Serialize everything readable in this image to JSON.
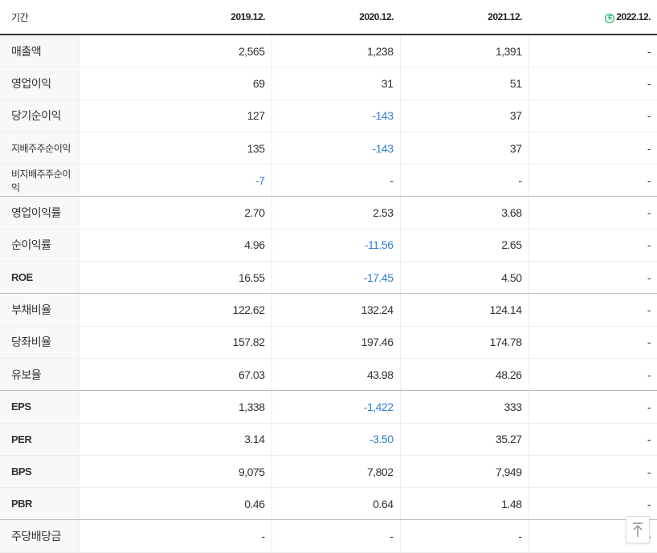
{
  "header": {
    "period_label": "기간",
    "columns": [
      "2019.12.",
      "2020.12.",
      "2021.12.",
      "2022.12."
    ],
    "estimate_badge": "E",
    "estimate_color": "#1aa866"
  },
  "colors": {
    "negative": "#2f7fd3"
  },
  "rows": [
    {
      "label": "매출액",
      "values": [
        "2,565",
        "1,238",
        "1,391",
        "-"
      ]
    },
    {
      "label": "영업이익",
      "values": [
        "69",
        "31",
        "51",
        "-"
      ]
    },
    {
      "label": "당기순이익",
      "values": [
        "127",
        "-143",
        "37",
        "-"
      ]
    },
    {
      "label": "지배주주순이익",
      "values": [
        "135",
        "-143",
        "37",
        "-"
      ]
    },
    {
      "label": "비지배주주순이익",
      "values": [
        "-7",
        "-",
        "-",
        "-"
      ]
    },
    {
      "label": "영업이익률",
      "values": [
        "2.70",
        "2.53",
        "3.68",
        "-"
      ]
    },
    {
      "label": "순이익률",
      "values": [
        "4.96",
        "-11.56",
        "2.65",
        "-"
      ]
    },
    {
      "label": "ROE",
      "values": [
        "16.55",
        "-17.45",
        "4.50",
        "-"
      ]
    },
    {
      "label": "부채비율",
      "values": [
        "122.62",
        "132.24",
        "124.14",
        "-"
      ]
    },
    {
      "label": "당좌비율",
      "values": [
        "157.82",
        "197.46",
        "174.78",
        "-"
      ]
    },
    {
      "label": "유보율",
      "values": [
        "67.03",
        "43.98",
        "48.26",
        "-"
      ]
    },
    {
      "label": "EPS",
      "values": [
        "1,338",
        "-1,422",
        "333",
        "-"
      ]
    },
    {
      "label": "PER",
      "values": [
        "3.14",
        "-3.50",
        "35.27",
        "-"
      ]
    },
    {
      "label": "BPS",
      "values": [
        "9,075",
        "7,802",
        "7,949",
        "-"
      ]
    },
    {
      "label": "PBR",
      "values": [
        "0.46",
        "0.64",
        "1.48",
        "-"
      ]
    },
    {
      "label": "주당배당금",
      "values": [
        "-",
        "-",
        "-",
        "-"
      ]
    }
  ],
  "scroll_top_icon": "arrow-up-to-line-icon"
}
